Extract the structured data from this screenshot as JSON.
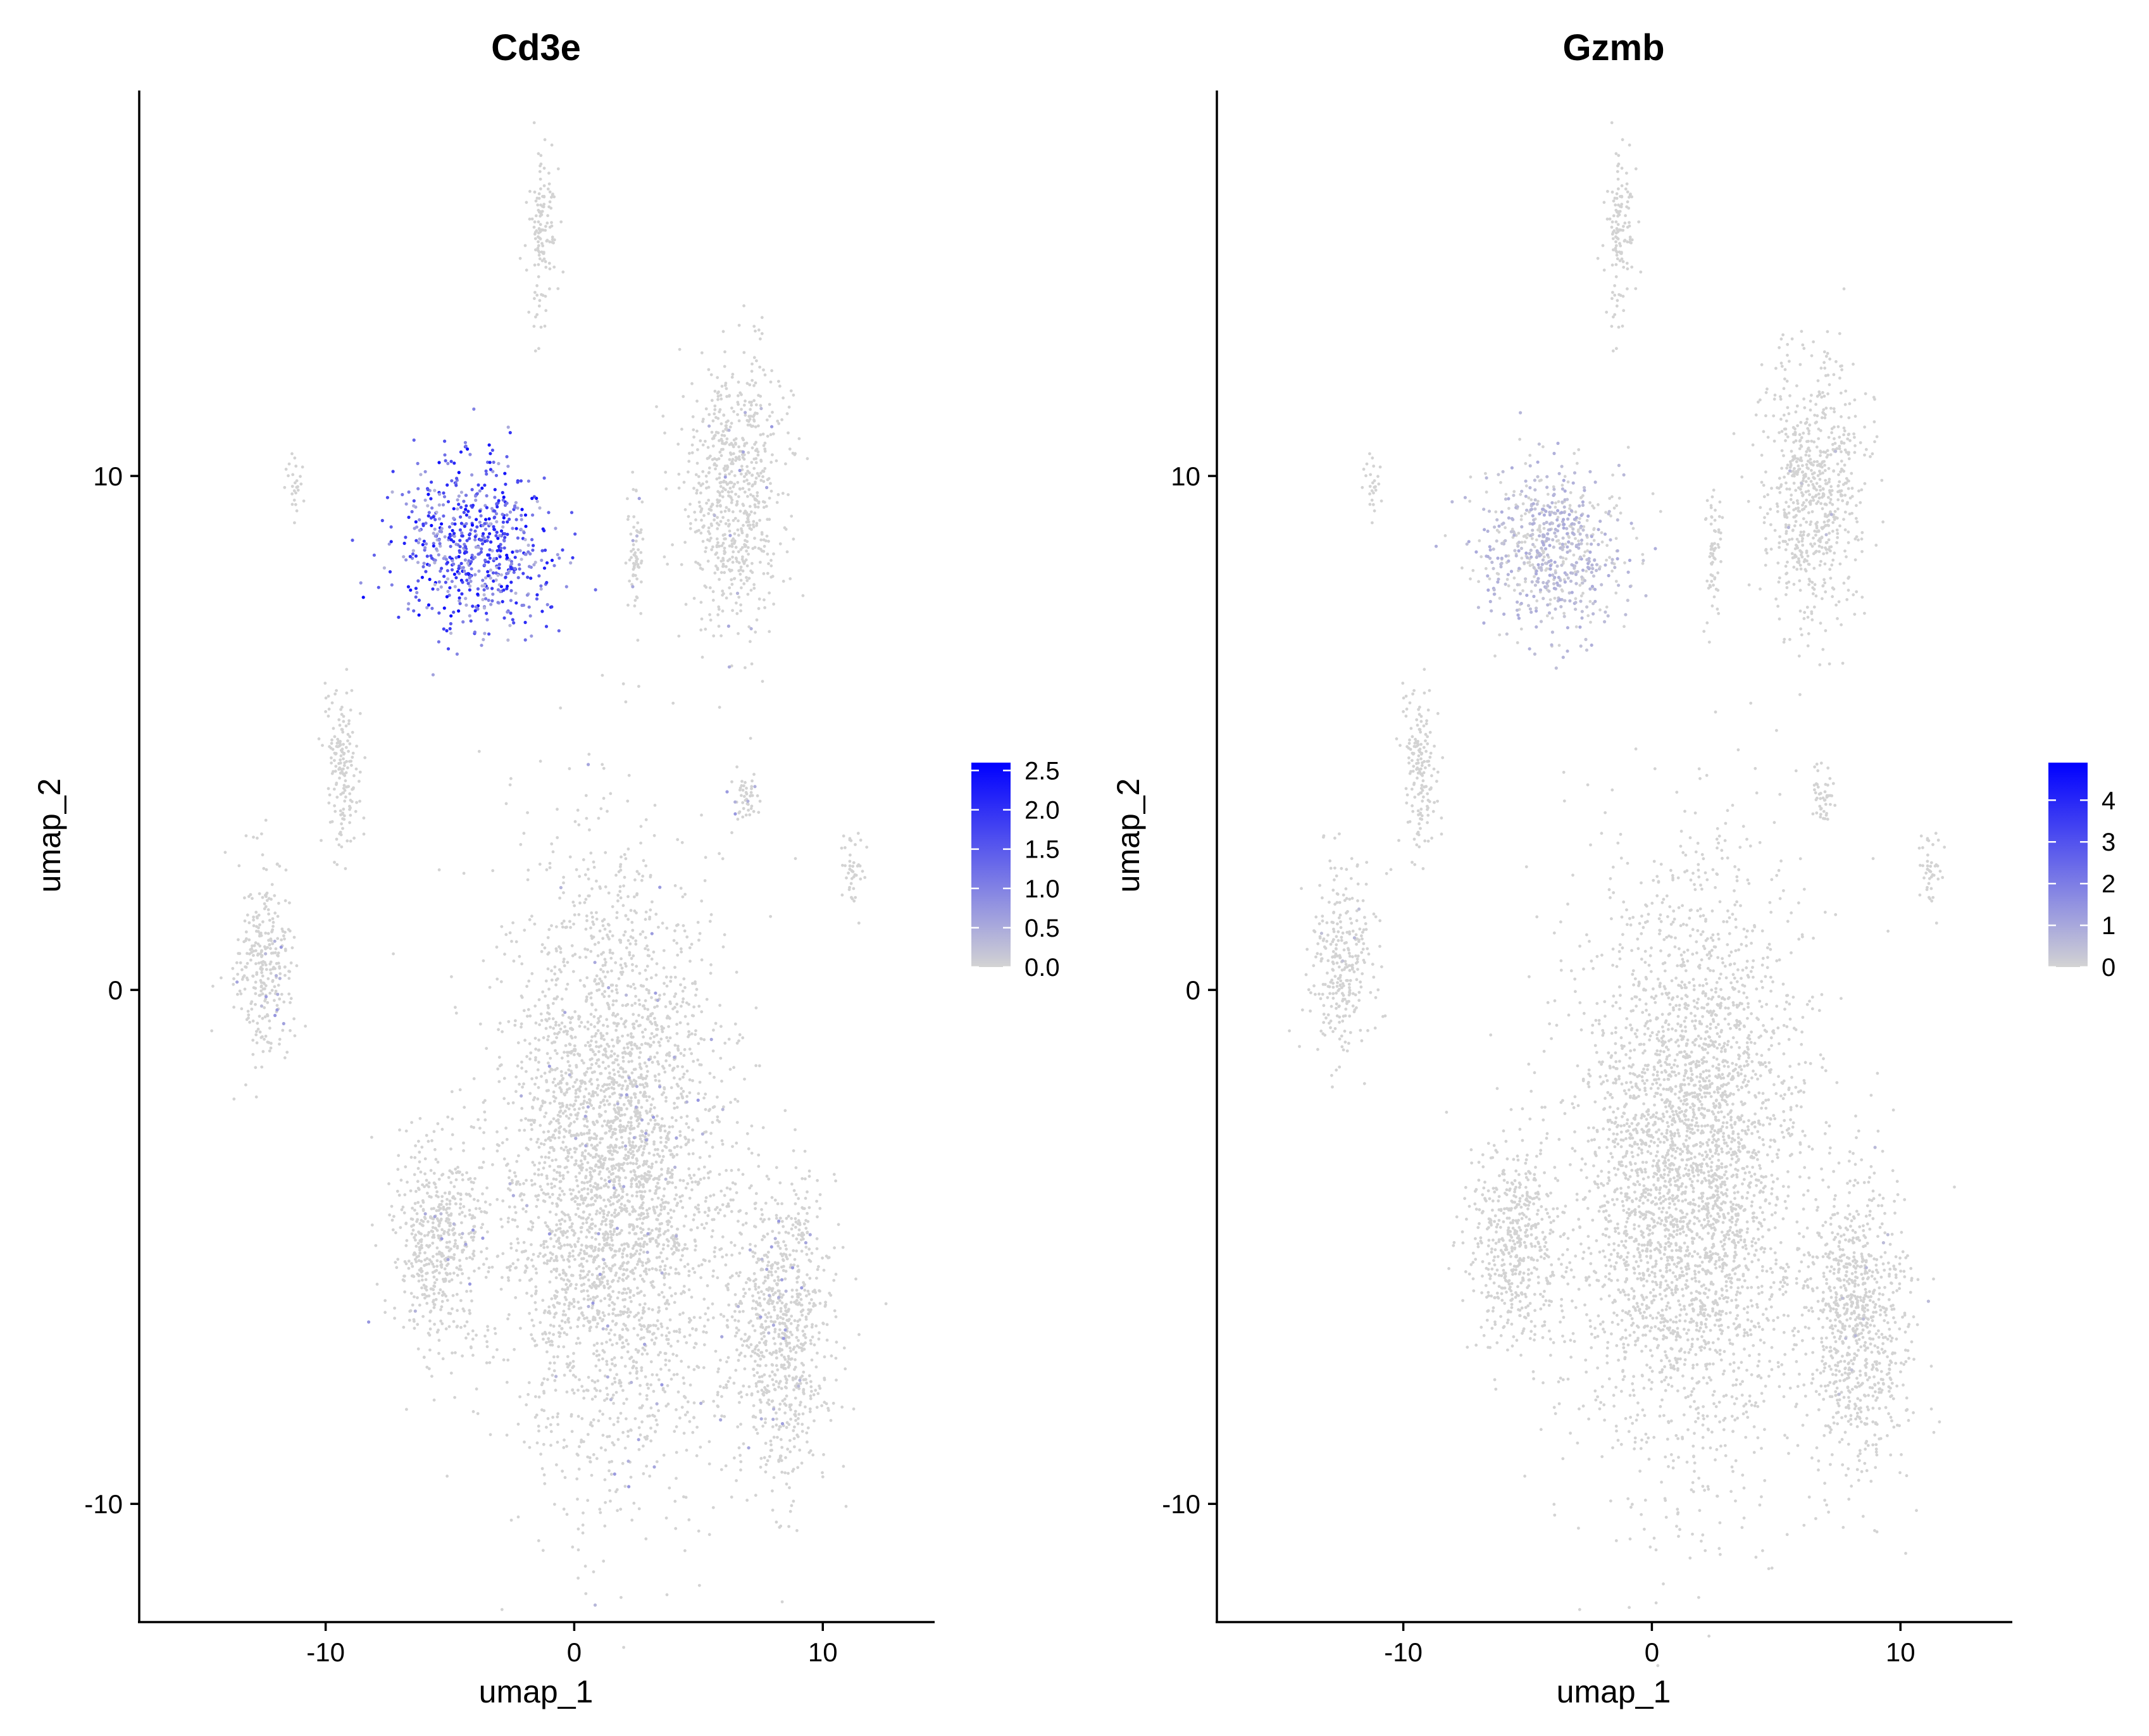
{
  "chart_data": [
    {
      "type": "scatter",
      "title": "Cd3e",
      "xlabel": "umap_1",
      "ylabel": "umap_2",
      "xlim": [
        -17.5,
        14.5
      ],
      "ylim": [
        -12.3,
        17.5
      ],
      "xticks": [
        -10,
        0,
        10
      ],
      "yticks": [
        -10,
        0,
        10
      ],
      "grid": false,
      "legend": {
        "placement": "right",
        "title": "",
        "low_color": "#d3d3d3",
        "high_color": "#0000ff",
        "range": [
          0,
          2.6
        ],
        "ticks": [
          "0.0",
          "0.5",
          "1.0",
          "1.5",
          "2.0",
          "2.5"
        ],
        "tick_values": [
          0,
          0.5,
          1.0,
          1.5,
          2.0,
          2.5
        ]
      },
      "base_color": "#d3d3d3",
      "clusters": [
        {
          "center": [
            1.5,
            -3.5
          ],
          "spread": [
            3.6,
            4.6
          ],
          "expression": 0.02
        },
        {
          "center": [
            -5.5,
            -5.0
          ],
          "spread": [
            1.6,
            1.6
          ],
          "expression": 0.02
        },
        {
          "center": [
            8.3,
            -6.5
          ],
          "spread": [
            1.7,
            2.4
          ],
          "expression": 0.03
        },
        {
          "center": [
            6.5,
            9.7
          ],
          "spread": [
            1.6,
            2.1
          ],
          "expression": 0.02
        },
        {
          "center": [
            -1.3,
            14.6
          ],
          "spread": [
            0.45,
            1.4
          ],
          "expression": 0.0
        },
        {
          "center": [
            -12.5,
            0.5
          ],
          "spread": [
            1.0,
            1.4
          ],
          "expression": 0.03
        },
        {
          "center": [
            -9.3,
            4.3
          ],
          "spread": [
            0.6,
            1.3
          ],
          "expression": 0.0
        },
        {
          "center": [
            11.2,
            2.3
          ],
          "spread": [
            0.35,
            0.6
          ],
          "expression": 0.0
        },
        {
          "center": [
            6.9,
            3.8
          ],
          "spread": [
            0.5,
            0.45
          ],
          "expression": 0.2
        },
        {
          "center": [
            -11.3,
            10.0
          ],
          "spread": [
            0.28,
            0.45
          ],
          "expression": 0.0
        },
        {
          "center": [
            -4.0,
            8.6
          ],
          "spread": [
            2.4,
            1.3
          ],
          "expression": 2.0
        },
        {
          "center": [
            2.5,
            8.5
          ],
          "spread": [
            0.25,
            1.2
          ],
          "expression": 0.08
        }
      ]
    },
    {
      "type": "scatter",
      "title": "Gzmb",
      "xlabel": "umap_1",
      "ylabel": "umap_2",
      "xlim": [
        -17.5,
        14.5
      ],
      "ylim": [
        -12.3,
        17.5
      ],
      "xticks": [
        -10,
        0,
        10
      ],
      "yticks": [
        -10,
        0,
        10
      ],
      "grid": false,
      "legend": {
        "placement": "right",
        "title": "",
        "low_color": "#d3d3d3",
        "high_color": "#0000ff",
        "range": [
          0,
          4.9
        ],
        "ticks": [
          "0",
          "1",
          "2",
          "3",
          "4"
        ],
        "tick_values": [
          0,
          1,
          2,
          3,
          4
        ]
      },
      "base_color": "#d3d3d3",
      "clusters": [
        {
          "center": [
            1.5,
            -3.5
          ],
          "spread": [
            3.6,
            4.6
          ],
          "expression": 0.0
        },
        {
          "center": [
            -5.5,
            -5.0
          ],
          "spread": [
            1.6,
            1.6
          ],
          "expression": 0.0
        },
        {
          "center": [
            8.3,
            -6.5
          ],
          "spread": [
            1.7,
            2.4
          ],
          "expression": 0.01
        },
        {
          "center": [
            6.5,
            9.7
          ],
          "spread": [
            1.6,
            2.1
          ],
          "expression": 0.01
        },
        {
          "center": [
            -1.3,
            14.6
          ],
          "spread": [
            0.45,
            1.4
          ],
          "expression": 0.0
        },
        {
          "center": [
            -12.5,
            0.5
          ],
          "spread": [
            1.0,
            1.4
          ],
          "expression": 0.02
        },
        {
          "center": [
            -9.3,
            4.3
          ],
          "spread": [
            0.6,
            1.3
          ],
          "expression": 0.0
        },
        {
          "center": [
            11.2,
            2.3
          ],
          "spread": [
            0.35,
            0.6
          ],
          "expression": 0.0
        },
        {
          "center": [
            6.9,
            3.8
          ],
          "spread": [
            0.5,
            0.45
          ],
          "expression": 0.0
        },
        {
          "center": [
            -11.3,
            10.0
          ],
          "spread": [
            0.28,
            0.45
          ],
          "expression": 0.0
        },
        {
          "center": [
            -4.0,
            8.6
          ],
          "spread": [
            2.4,
            1.3
          ],
          "expression": 0.6
        },
        {
          "center": [
            2.5,
            8.5
          ],
          "spread": [
            0.25,
            1.2
          ],
          "expression": 0.02
        }
      ]
    }
  ]
}
